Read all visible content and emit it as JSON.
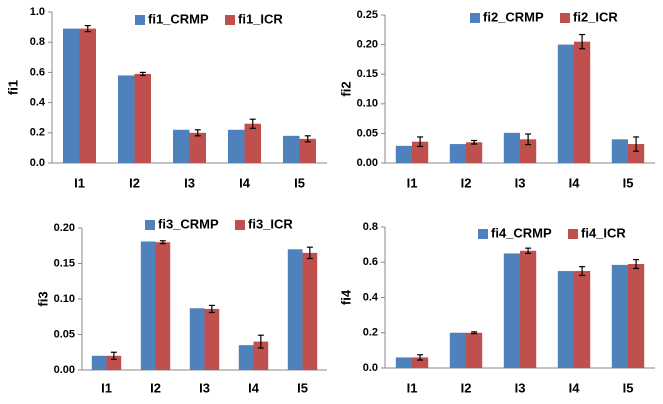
{
  "chart_data": [
    {
      "type": "bar",
      "y_label": "fi1",
      "categories": [
        "I1",
        "I2",
        "I3",
        "I4",
        "I5"
      ],
      "series": [
        {
          "name": "fi1_CRMP",
          "color": "#4f81bd",
          "values": [
            0.89,
            0.58,
            0.22,
            0.22,
            0.18
          ]
        },
        {
          "name": "fi1_ICR",
          "color": "#c0504d",
          "values": [
            0.89,
            0.59,
            0.2,
            0.26,
            0.16
          ],
          "errors": [
            0.02,
            0.01,
            0.02,
            0.03,
            0.02
          ]
        }
      ],
      "ylim": [
        0,
        1
      ],
      "yticks": [
        {
          "value": 0,
          "label": "0.0"
        },
        0.2,
        0.4,
        0.6,
        0.8,
        {
          "value": 1,
          "label": "1.0"
        }
      ],
      "legend": "top"
    },
    {
      "type": "bar",
      "y_label": "fi2",
      "categories": [
        "I1",
        "I2",
        "I3",
        "I4",
        "I5"
      ],
      "series": [
        {
          "name": "fi2_CRMP",
          "color": "#4f81bd",
          "values": [
            0.029,
            0.032,
            0.051,
            0.2,
            0.04
          ]
        },
        {
          "name": "fi2_ICR",
          "color": "#c0504d",
          "values": [
            0.036,
            0.035,
            0.04,
            0.205,
            0.032
          ],
          "errors": [
            0.008,
            0.003,
            0.009,
            0.012,
            0.012
          ]
        }
      ],
      "ylim": [
        0,
        0.25
      ],
      "yticks": [
        {
          "value": 0,
          "label": "0.00"
        },
        0.05,
        {
          "value": 0.1,
          "label": "0.10"
        },
        0.15,
        {
          "value": 0.2,
          "label": "0.20"
        },
        0.25
      ],
      "legend": "top"
    },
    {
      "type": "bar",
      "y_label": "fi3",
      "categories": [
        "I1",
        "I2",
        "I3",
        "I4",
        "I5"
      ],
      "series": [
        {
          "name": "fi3_CRMP",
          "color": "#4f81bd",
          "values": [
            0.02,
            0.181,
            0.087,
            0.035,
            0.17
          ]
        },
        {
          "name": "fi3_ICR",
          "color": "#c0504d",
          "values": [
            0.02,
            0.18,
            0.086,
            0.04,
            0.165
          ],
          "errors": [
            0.005,
            0.002,
            0.005,
            0.009,
            0.008
          ]
        }
      ],
      "ylim": [
        0,
        0.2
      ],
      "yticks": [
        {
          "value": 0,
          "label": "0.00"
        },
        0.05,
        {
          "value": 0.1,
          "label": "0.10"
        },
        0.15,
        {
          "value": 0.2,
          "label": "0.20"
        }
      ],
      "legend": "top"
    },
    {
      "type": "bar",
      "y_label": "fi4",
      "categories": [
        "I1",
        "I2",
        "I3",
        "I4",
        "I5"
      ],
      "series": [
        {
          "name": "fi4_CRMP",
          "color": "#4f81bd",
          "values": [
            0.06,
            0.2,
            0.65,
            0.55,
            0.585
          ]
        },
        {
          "name": "fi4_ICR",
          "color": "#c0504d",
          "values": [
            0.06,
            0.2,
            0.665,
            0.55,
            0.59
          ],
          "errors": [
            0.015,
            0.005,
            0.015,
            0.025,
            0.025
          ]
        }
      ],
      "ylim": [
        0,
        0.8
      ],
      "yticks": [
        {
          "value": 0,
          "label": "0.0"
        },
        0.2,
        0.4,
        0.6,
        0.8
      ],
      "legend": "top"
    }
  ]
}
